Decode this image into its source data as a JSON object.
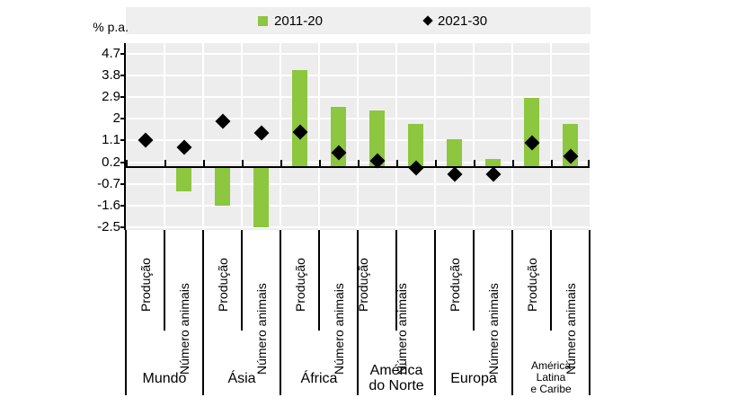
{
  "y_axis_unit": "% p.a.",
  "legend": {
    "items": [
      {
        "label": "2011-20",
        "marker": "square-icon",
        "color": "#8DC63F"
      },
      {
        "label": "2021-30",
        "marker": "diamond-icon",
        "color": "#000000"
      }
    ]
  },
  "colors": {
    "bar_green": "#8DC63F",
    "marker_black": "#000000",
    "plot_bg": "#EDEDED",
    "legend_bg": "#EFEFEF",
    "gridline": "#FFFFFF"
  },
  "chart_data": {
    "type": "bar",
    "title": "",
    "ylabel": "% p.a.",
    "categories": [
      "Mundo",
      "Ásia",
      "África",
      "América do Norte",
      "Europa",
      "América Latina e Caribe"
    ],
    "category_display_lines": [
      [
        "Mundo"
      ],
      [
        "Ásia"
      ],
      [
        "África"
      ],
      [
        "América",
        "do Norte"
      ],
      [
        "Europa"
      ],
      [
        "América",
        "Latina",
        "e Caribe"
      ]
    ],
    "subcategories": [
      "Produção",
      "Número animais"
    ],
    "series": [
      {
        "name": "2011-20",
        "type": "bar",
        "color": "#8DC63F",
        "values": [
          [
            0.0,
            -1.0
          ],
          [
            -1.6,
            -2.5
          ],
          [
            4.0,
            2.5
          ],
          [
            2.35,
            1.8
          ],
          [
            1.15,
            0.35
          ],
          [
            2.85,
            1.8
          ]
        ]
      },
      {
        "name": "2021-30",
        "type": "point-diamond",
        "color": "#000000",
        "values": [
          [
            1.1,
            0.8
          ],
          [
            1.9,
            1.4
          ],
          [
            1.45,
            0.6
          ],
          [
            0.25,
            -0.05
          ],
          [
            -0.3,
            -0.3
          ],
          [
            1.0,
            0.45
          ]
        ]
      }
    ],
    "yticks": [
      4.7,
      3.8,
      2.9,
      2,
      1.1,
      0.2,
      -0.7,
      -1.6,
      -2.5
    ],
    "ylim": [
      -2.6,
      5.15
    ],
    "grid": true,
    "legend_position": "top"
  }
}
